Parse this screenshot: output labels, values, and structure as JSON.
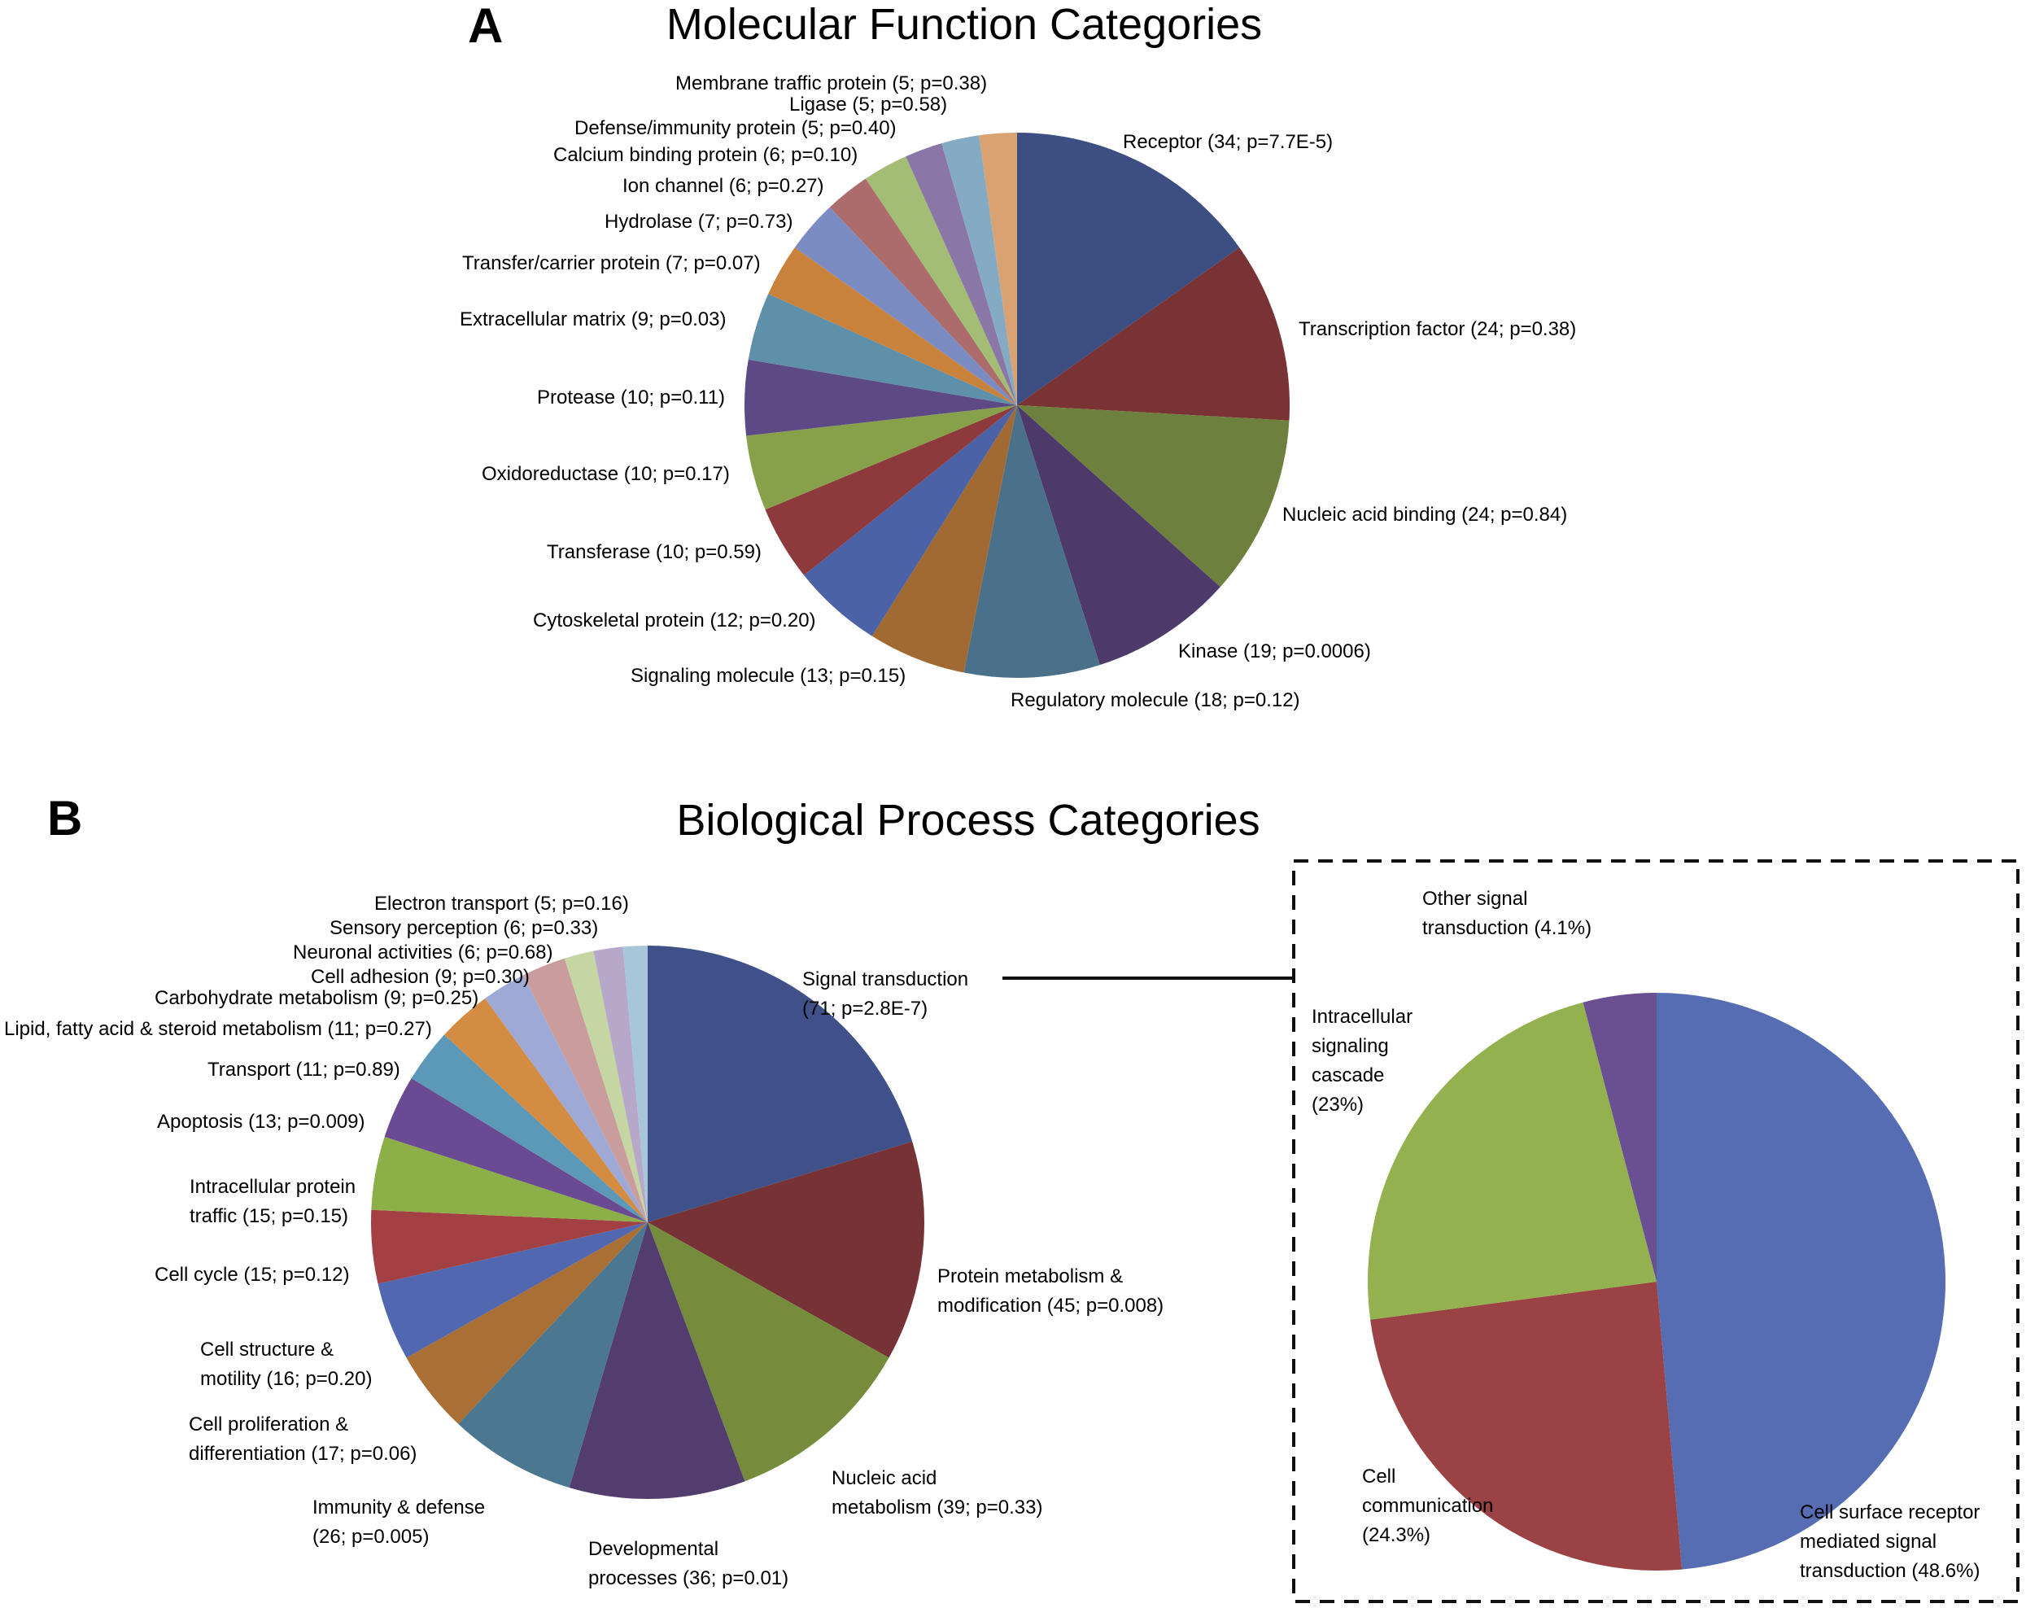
{
  "chart_data": [
    {
      "type": "pie",
      "panel": "A",
      "title": "Molecular Function Categories",
      "slices": [
        {
          "label": "Receptor (34; p=7.7E-5)",
          "value": 34,
          "color": "#3c4e82"
        },
        {
          "label": "Transcription factor (24; p=0.38)",
          "value": 24,
          "color": "#7a3335"
        },
        {
          "label": "Nucleic acid binding (24; p=0.84)",
          "value": 24,
          "color": "#6d803d"
        },
        {
          "label": "Kinase (19; p=0.0006)",
          "value": 19,
          "color": "#4d3a6b"
        },
        {
          "label": "Regulatory molecule (18; p=0.12)",
          "value": 18,
          "color": "#4a7189"
        },
        {
          "label": "Signaling molecule (13; p=0.15)",
          "value": 13,
          "color": "#a16a32"
        },
        {
          "label": "Cytoskeletal protein (12; p=0.20)",
          "value": 12,
          "color": "#4c62a6"
        },
        {
          "label": "Transferase (10; p=0.59)",
          "value": 10,
          "color": "#8e3a3c"
        },
        {
          "label": "Oxidoreductase (10; p=0.17)",
          "value": 10,
          "color": "#86a14a"
        },
        {
          "label": "Protease (10; p=0.11)",
          "value": 10,
          "color": "#5d4985"
        },
        {
          "label": "Extracellular matrix (9; p=0.03)",
          "value": 9,
          "color": "#5f90aa"
        },
        {
          "label": "Transfer/carrier protein (7; p=0.07)",
          "value": 7,
          "color": "#c8823c"
        },
        {
          "label": "Hydrolase (7; p=0.73)",
          "value": 7,
          "color": "#7b8cc3"
        },
        {
          "label": "Ion channel (6; p=0.27)",
          "value": 6,
          "color": "#ad6c6c"
        },
        {
          "label": "Calcium binding protein (6; p=0.10)",
          "value": 6,
          "color": "#a4bd74"
        },
        {
          "label": "Defense/immunity protein (5; p=0.40)",
          "value": 5,
          "color": "#8a77a8"
        },
        {
          "label": "Ligase (5; p=0.58)",
          "value": 5,
          "color": "#84aac4"
        },
        {
          "label": "Membrane traffic protein (5; p=0.38)",
          "value": 5,
          "color": "#d8a273"
        }
      ]
    },
    {
      "type": "pie",
      "panel": "B",
      "title": "Biological Process Categories",
      "slices": [
        {
          "label": [
            "Signal transduction",
            "(71; p=2.8E-7)"
          ],
          "value": 71,
          "color": "#3f5188"
        },
        {
          "label": [
            "Protein metabolism &",
            "modification (45; p=0.008)"
          ],
          "value": 45,
          "color": "#763234"
        },
        {
          "label": [
            "Nucleic acid",
            "metabolism (39; p=0.33)"
          ],
          "value": 39,
          "color": "#758c3d"
        },
        {
          "label": [
            "Developmental",
            "processes (36; p=0.01)"
          ],
          "value": 36,
          "color": "#533c6e"
        },
        {
          "label": [
            "Immunity & defense",
            "(26; p=0.005)"
          ],
          "value": 26,
          "color": "#4b7790"
        },
        {
          "label": [
            "Cell proliferation &",
            "differentiation (17; p=0.06)"
          ],
          "value": 17,
          "color": "#a96f34"
        },
        {
          "label": [
            "Cell structure &",
            "motility (16; p=0.20)"
          ],
          "value": 16,
          "color": "#5167b0"
        },
        {
          "label": [
            "Cell cycle (15; p=0.12)"
          ],
          "value": 15,
          "color": "#a24043"
        },
        {
          "label": [
            "Intracellular protein",
            "traffic (15; p=0.15)"
          ],
          "value": 15,
          "color": "#8caf47"
        },
        {
          "label": [
            "Apoptosis (13; p=0.009)"
          ],
          "value": 13,
          "color": "#6a4b93"
        },
        {
          "label": [
            "Transport (11; p=0.89)"
          ],
          "value": 11,
          "color": "#5c98b8"
        },
        {
          "label": [
            "Lipid, fatty acid & steroid metabolism (11; p=0.27)"
          ],
          "value": 11,
          "color": "#d38c42"
        },
        {
          "label": [
            "Carbohydrate metabolism (9; p=0.25)"
          ],
          "value": 9,
          "color": "#9ea9d6"
        },
        {
          "label": [
            "Cell adhesion (9; p=0.30)"
          ],
          "value": 9,
          "color": "#c99d9d"
        },
        {
          "label": [
            "Neuronal activities (6; p=0.68)"
          ],
          "value": 6,
          "color": "#c6d6a2"
        },
        {
          "label": [
            "Sensory perception (6; p=0.33)"
          ],
          "value": 6,
          "color": "#b5a8c8"
        },
        {
          "label": [
            "Electron transport (5; p=0.16)"
          ],
          "value": 5,
          "color": "#a8c6d9"
        }
      ]
    },
    {
      "type": "pie",
      "panel": "B-inset",
      "title": "",
      "slices": [
        {
          "label": [
            "Cell surface receptor",
            "mediated signal",
            "transduction (48.6%)"
          ],
          "value": 48.6,
          "color": "#566db3"
        },
        {
          "label": [
            "Cell",
            "communication",
            "(24.3%)"
          ],
          "value": 24.3,
          "color": "#9a4244"
        },
        {
          "label": [
            "Intracellular",
            "signaling",
            "cascade",
            "(23%)"
          ],
          "value": 23,
          "color": "#93b24f"
        },
        {
          "label": [
            "Other signal",
            "transduction (4.1%)"
          ],
          "value": 4.1,
          "color": "#6a4f92"
        }
      ]
    }
  ]
}
